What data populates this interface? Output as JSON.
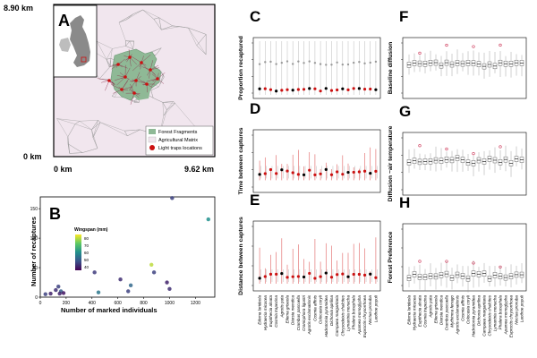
{
  "panels": {
    "A": {
      "letter": "A",
      "y_top_label": "8.90 km",
      "y_bottom_label": "0 km",
      "x_left_label": "0 km",
      "x_right_label": "9.62 km",
      "legend": [
        "Forest Fragments",
        "Agricultural Matrix",
        "Light traps locations"
      ]
    },
    "B": {
      "letter": "B"
    },
    "C": {
      "letter": "C",
      "ylabel": "Proportion recaptured"
    },
    "D": {
      "letter": "D",
      "ylabel": "Time between captures"
    },
    "E": {
      "letter": "E",
      "ylabel": "Distance between captures"
    },
    "F": {
      "letter": "F",
      "ylabel": "Baseline diffusion"
    },
    "G": {
      "letter": "G",
      "ylabel": "Diffusion ~air temperature"
    },
    "H": {
      "letter": "H",
      "ylabel": "Forest Preference"
    }
  },
  "colors": {
    "forest": "#8fb996",
    "matrix": "#f1e6ee",
    "trap": "#cc1111",
    "mesh": "#9a9a9a"
  },
  "chart_data": [
    {
      "panel": "B",
      "type": "scatter",
      "xlabel": "Number of marked individuals",
      "ylabel": "Number of recaptures",
      "xlim": [
        0,
        1350
      ],
      "ylim": [
        0,
        170
      ],
      "xticks": [
        0,
        200,
        400,
        600,
        800,
        1000,
        1200
      ],
      "yticks": [
        0,
        50,
        100,
        150
      ],
      "legend_title": "Wingspan (mm)",
      "legend_ticks": [
        40,
        50,
        60,
        70,
        80
      ],
      "color_range": [
        35,
        85
      ],
      "points": [
        {
          "x": 40,
          "y": 5,
          "w": 45
        },
        {
          "x": 80,
          "y": 6,
          "w": 40
        },
        {
          "x": 120,
          "y": 12,
          "w": 42
        },
        {
          "x": 140,
          "y": 18,
          "w": 45
        },
        {
          "x": 160,
          "y": 10,
          "w": 50
        },
        {
          "x": 180,
          "y": 7,
          "w": 38
        },
        {
          "x": 150,
          "y": 6,
          "w": 40
        },
        {
          "x": 420,
          "y": 42,
          "w": 44
        },
        {
          "x": 450,
          "y": 8,
          "w": 55
        },
        {
          "x": 620,
          "y": 30,
          "w": 42
        },
        {
          "x": 700,
          "y": 20,
          "w": 52
        },
        {
          "x": 680,
          "y": 10,
          "w": 45
        },
        {
          "x": 860,
          "y": 55,
          "w": 80
        },
        {
          "x": 880,
          "y": 42,
          "w": 45
        },
        {
          "x": 980,
          "y": 25,
          "w": 40
        },
        {
          "x": 1000,
          "y": 14,
          "w": 42
        },
        {
          "x": 1020,
          "y": 168,
          "w": 45
        },
        {
          "x": 1300,
          "y": 132,
          "w": 60
        }
      ]
    },
    {
      "panel": "C-E",
      "type": "point-range",
      "species": [
        "Eilema lurideola",
        "Hydraecia micacea",
        "Eupithecia alnata",
        "Cosmia trapezina",
        "Agrotis puta",
        "Eilema griseola",
        "Diarsia mendica",
        "Crambus pascuella",
        "Craniophora ligustri",
        "Agrotis exclamationis",
        "Cosmia affinis",
        "Colocasia coryli",
        "Hadrotomia pyramidea",
        "Dichonia aprilina",
        "Campaea margaritaria",
        "Chrysodeixis chalcites",
        "Lymantria monacha",
        "Phalera bucephala",
        "Apamea monoglypha",
        "Euproctis chrysorrhoea",
        "Noctua pronuba",
        "Laothoe populi"
      ]
    },
    {
      "panel": "F-H",
      "type": "boxplot",
      "species": [
        "Eilema lurideola",
        "Hydraecia micacea",
        "Eupithecia alnata",
        "Cosmia trapezina",
        "Agrotis puta",
        "Eilema griseola",
        "Diarsia mendica",
        "Crambus pascuella",
        "Mythimna ferrago",
        "Agrotis exclamationis",
        "Cosmia affinis",
        "Colocasia coryli",
        "Hadrotomia pyramidea",
        "Dichonia aprilina",
        "Campaea margaritaria",
        "Chrysodeixis chalcites",
        "Lymantria monacha",
        "Phalera bucephala",
        "Apamea monoglypha",
        "Euproctis chrysorrhoea",
        "Noctua pronuba",
        "Laothoe populi"
      ]
    }
  ]
}
